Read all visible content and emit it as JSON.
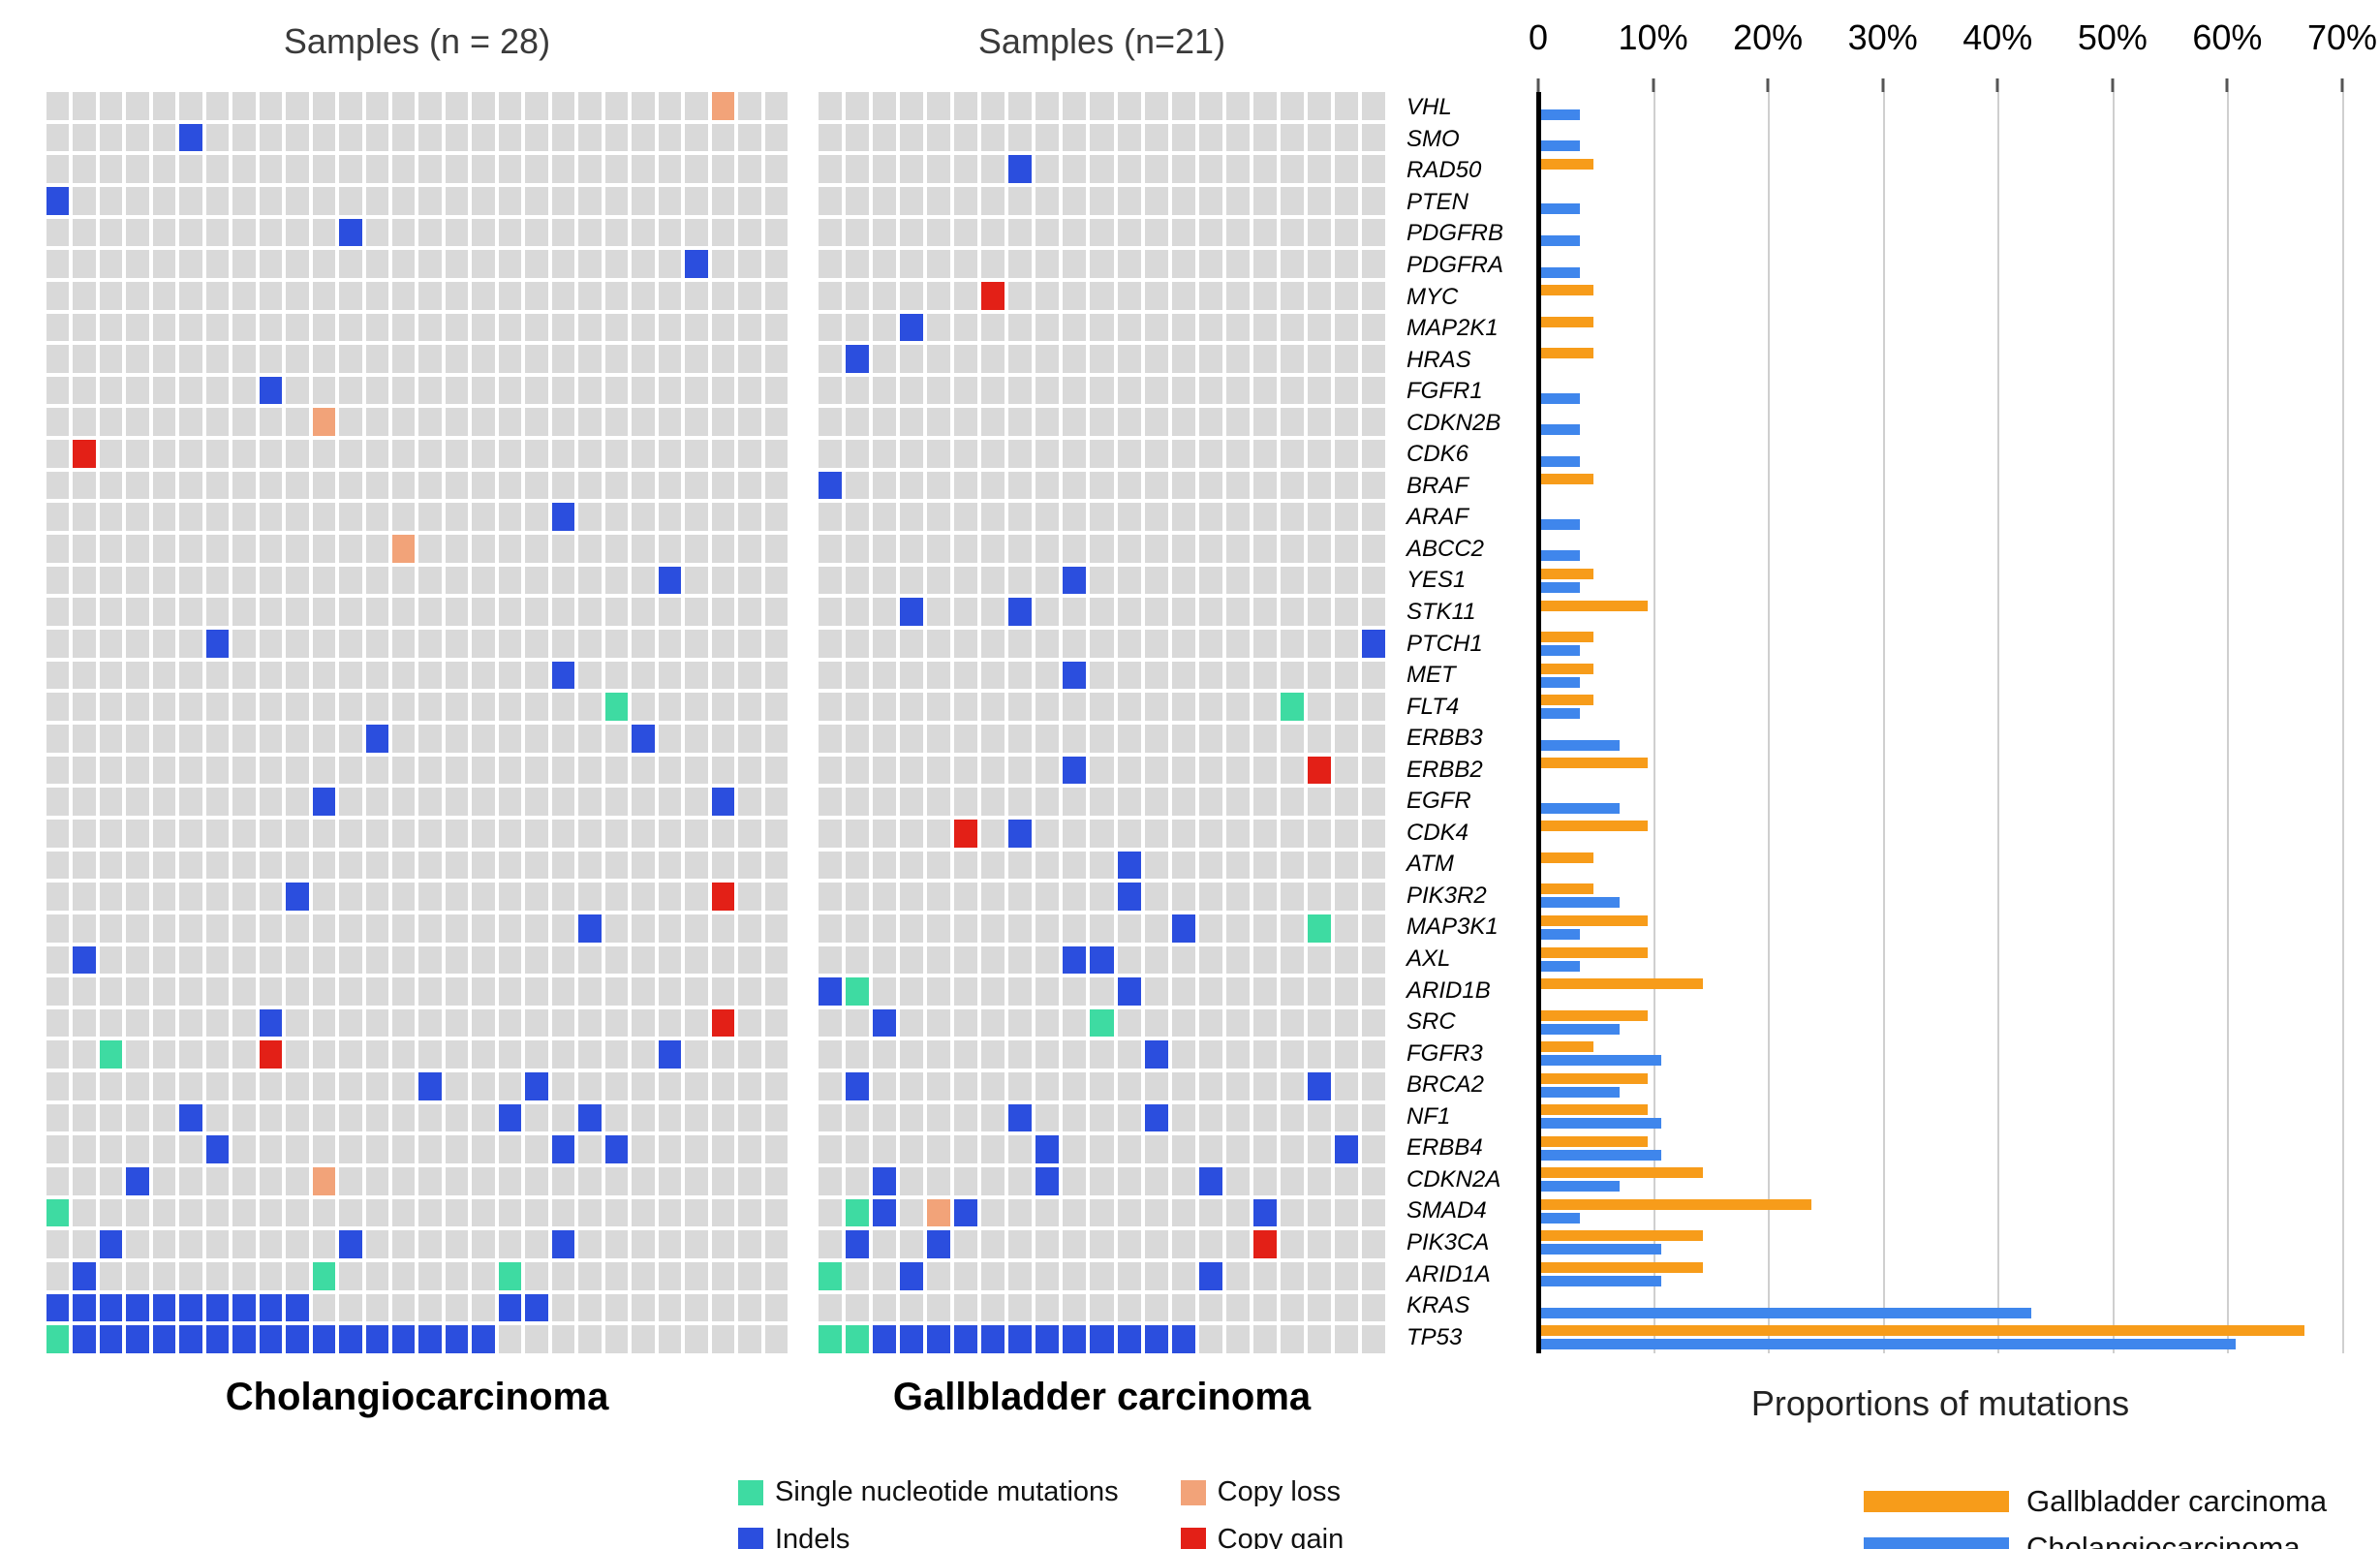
{
  "panels": {
    "cholangiocarcinoma": {
      "title": "Samples (n = 28)",
      "label": "Cholangiocarcinoma",
      "n_samples": 28,
      "n_gene_rows": 40,
      "cells": [
        [
          0,
          26,
          "loss"
        ],
        [
          1,
          6,
          "indel"
        ],
        [
          3,
          1,
          "indel"
        ],
        [
          4,
          12,
          "indel"
        ],
        [
          5,
          25,
          "indel"
        ],
        [
          9,
          9,
          "indel"
        ],
        [
          10,
          11,
          "loss"
        ],
        [
          11,
          2,
          "gain"
        ],
        [
          13,
          20,
          "indel"
        ],
        [
          14,
          14,
          "loss"
        ],
        [
          15,
          24,
          "indel"
        ],
        [
          17,
          7,
          "indel"
        ],
        [
          18,
          20,
          "indel"
        ],
        [
          19,
          22,
          "snv"
        ],
        [
          20,
          13,
          "indel"
        ],
        [
          20,
          23,
          "indel"
        ],
        [
          22,
          11,
          "indel"
        ],
        [
          22,
          26,
          "indel"
        ],
        [
          25,
          10,
          "indel"
        ],
        [
          25,
          26,
          "gain"
        ],
        [
          26,
          21,
          "indel"
        ],
        [
          27,
          2,
          "indel"
        ],
        [
          29,
          9,
          "indel"
        ],
        [
          29,
          26,
          "gain"
        ],
        [
          30,
          3,
          "snv"
        ],
        [
          30,
          9,
          "gain"
        ],
        [
          30,
          24,
          "indel"
        ],
        [
          31,
          15,
          "indel"
        ],
        [
          31,
          19,
          "indel"
        ],
        [
          32,
          6,
          "indel"
        ],
        [
          32,
          18,
          "indel"
        ],
        [
          32,
          21,
          "indel"
        ],
        [
          33,
          7,
          "indel"
        ],
        [
          33,
          20,
          "indel"
        ],
        [
          33,
          22,
          "indel"
        ],
        [
          34,
          4,
          "indel"
        ],
        [
          34,
          11,
          "loss"
        ],
        [
          35,
          1,
          "snv"
        ],
        [
          36,
          3,
          "indel"
        ],
        [
          36,
          12,
          "indel"
        ],
        [
          36,
          20,
          "indel"
        ],
        [
          37,
          2,
          "indel"
        ],
        [
          37,
          11,
          "snv"
        ],
        [
          37,
          18,
          "snv"
        ],
        [
          38,
          1,
          "indel"
        ],
        [
          38,
          2,
          "indel"
        ],
        [
          38,
          3,
          "indel"
        ],
        [
          38,
          4,
          "indel"
        ],
        [
          38,
          5,
          "indel"
        ],
        [
          38,
          6,
          "indel"
        ],
        [
          38,
          7,
          "indel"
        ],
        [
          38,
          8,
          "indel"
        ],
        [
          38,
          9,
          "indel"
        ],
        [
          38,
          10,
          "indel"
        ],
        [
          38,
          18,
          "indel"
        ],
        [
          38,
          19,
          "indel"
        ],
        [
          39,
          1,
          "snv"
        ],
        [
          39,
          2,
          "indel"
        ],
        [
          39,
          3,
          "indel"
        ],
        [
          39,
          4,
          "indel"
        ],
        [
          39,
          5,
          "indel"
        ],
        [
          39,
          6,
          "indel"
        ],
        [
          39,
          7,
          "indel"
        ],
        [
          39,
          8,
          "indel"
        ],
        [
          39,
          9,
          "indel"
        ],
        [
          39,
          10,
          "indel"
        ],
        [
          39,
          11,
          "indel"
        ],
        [
          39,
          12,
          "indel"
        ],
        [
          39,
          13,
          "indel"
        ],
        [
          39,
          14,
          "indel"
        ],
        [
          39,
          15,
          "indel"
        ],
        [
          39,
          16,
          "indel"
        ],
        [
          39,
          17,
          "indel"
        ]
      ]
    },
    "gallbladder": {
      "title": "Samples (n=21)",
      "label": "Gallbladder carcinoma",
      "n_samples": 21,
      "n_gene_rows": 40,
      "cells": [
        [
          2,
          8,
          "indel"
        ],
        [
          6,
          7,
          "gain"
        ],
        [
          7,
          4,
          "indel"
        ],
        [
          8,
          2,
          "indel"
        ],
        [
          12,
          1,
          "indel"
        ],
        [
          15,
          10,
          "indel"
        ],
        [
          16,
          4,
          "indel"
        ],
        [
          16,
          8,
          "indel"
        ],
        [
          17,
          21,
          "indel"
        ],
        [
          18,
          10,
          "indel"
        ],
        [
          19,
          18,
          "snv"
        ],
        [
          21,
          10,
          "indel"
        ],
        [
          21,
          19,
          "gain"
        ],
        [
          23,
          6,
          "gain"
        ],
        [
          23,
          8,
          "indel"
        ],
        [
          24,
          12,
          "indel"
        ],
        [
          25,
          12,
          "indel"
        ],
        [
          26,
          14,
          "indel"
        ],
        [
          26,
          19,
          "snv"
        ],
        [
          27,
          10,
          "indel"
        ],
        [
          27,
          11,
          "indel"
        ],
        [
          28,
          1,
          "indel"
        ],
        [
          28,
          2,
          "snv"
        ],
        [
          28,
          12,
          "indel"
        ],
        [
          29,
          3,
          "indel"
        ],
        [
          29,
          11,
          "snv"
        ],
        [
          30,
          13,
          "indel"
        ],
        [
          31,
          2,
          "indel"
        ],
        [
          31,
          19,
          "indel"
        ],
        [
          32,
          8,
          "indel"
        ],
        [
          32,
          13,
          "indel"
        ],
        [
          33,
          9,
          "indel"
        ],
        [
          33,
          20,
          "indel"
        ],
        [
          34,
          3,
          "indel"
        ],
        [
          34,
          9,
          "indel"
        ],
        [
          34,
          15,
          "indel"
        ],
        [
          35,
          2,
          "snv"
        ],
        [
          35,
          3,
          "indel"
        ],
        [
          35,
          5,
          "loss"
        ],
        [
          35,
          6,
          "indel"
        ],
        [
          35,
          17,
          "indel"
        ],
        [
          36,
          2,
          "indel"
        ],
        [
          36,
          5,
          "indel"
        ],
        [
          36,
          17,
          "gain"
        ],
        [
          37,
          1,
          "snv"
        ],
        [
          37,
          4,
          "indel"
        ],
        [
          37,
          15,
          "indel"
        ],
        [
          39,
          1,
          "snv"
        ],
        [
          39,
          2,
          "snv"
        ],
        [
          39,
          3,
          "indel"
        ],
        [
          39,
          4,
          "indel"
        ],
        [
          39,
          5,
          "indel"
        ],
        [
          39,
          6,
          "indel"
        ],
        [
          39,
          7,
          "indel"
        ],
        [
          39,
          8,
          "indel"
        ],
        [
          39,
          9,
          "indel"
        ],
        [
          39,
          10,
          "indel"
        ],
        [
          39,
          11,
          "indel"
        ],
        [
          39,
          12,
          "indel"
        ],
        [
          39,
          13,
          "indel"
        ],
        [
          39,
          14,
          "indel"
        ]
      ]
    }
  },
  "chart_data": {
    "type": "bar",
    "orientation": "horizontal",
    "title": "",
    "xlabel": "Proportions of mutations",
    "ylabel": "",
    "xlim": [
      0,
      70
    ],
    "unit": "percent",
    "grid": true,
    "legend_position": "bottom-right",
    "x_tick_labels": [
      "0",
      "10%",
      "20%",
      "30%",
      "40%",
      "50%",
      "60%",
      "70%"
    ],
    "categories": [
      "VHL",
      "SMO",
      "RAD50",
      "PTEN",
      "PDGFRB",
      "PDGFRA",
      "MYC",
      "MAP2K1",
      "HRAS",
      "FGFR1",
      "CDKN2B",
      "CDK6",
      "BRAF",
      "ARAF",
      "ABCC2",
      "YES1",
      "STK11",
      "PTCH1",
      "MET",
      "FLT4",
      "ERBB3",
      "ERBB2",
      "EGFR",
      "CDK4",
      "ATM",
      "PIK3R2",
      "MAP3K1",
      "AXL",
      "ARID1B",
      "SRC",
      "FGFR3",
      "BRCA2",
      "NF1",
      "ERBB4",
      "CDKN2A",
      "SMAD4",
      "PIK3CA",
      "ARID1A",
      "KRAS",
      "TP53"
    ],
    "series": [
      {
        "name": "Gallbladder carcinoma",
        "color": "#F79C1A",
        "values": [
          0,
          0,
          4.8,
          0,
          0,
          0,
          4.8,
          4.8,
          4.8,
          0,
          0,
          0,
          4.8,
          0,
          0,
          4.8,
          9.5,
          4.8,
          4.8,
          4.8,
          0,
          9.5,
          0,
          9.5,
          4.8,
          4.8,
          9.5,
          9.5,
          14.3,
          9.5,
          4.8,
          9.5,
          9.5,
          9.5,
          14.3,
          23.8,
          14.3,
          14.3,
          0,
          66.7
        ]
      },
      {
        "name": "Cholangiocarcinoma",
        "color": "#3F86EC",
        "values": [
          3.6,
          3.6,
          0,
          3.6,
          3.6,
          3.6,
          0,
          0,
          0,
          3.6,
          3.6,
          3.6,
          0,
          3.6,
          3.6,
          3.6,
          0,
          3.6,
          3.6,
          3.6,
          7.1,
          0,
          7.1,
          0,
          0,
          7.1,
          3.6,
          3.6,
          0,
          7.1,
          10.7,
          7.1,
          10.7,
          10.7,
          7.1,
          3.6,
          10.7,
          10.7,
          42.9,
          60.7
        ]
      }
    ]
  },
  "mutation_legend": [
    {
      "type": "snv",
      "label": "Single nucleotide mutations",
      "color": "#3EDBA2"
    },
    {
      "type": "loss",
      "label": "Copy loss",
      "color": "#F2A379"
    },
    {
      "type": "indel",
      "label": "Indels",
      "color": "#2B4EDE"
    },
    {
      "type": "gain",
      "label": "Copy gain",
      "color": "#E32017"
    }
  ],
  "colors": {
    "cell_background": "#D9D9D9",
    "snv_green": "#3EDBA2",
    "indel_blue": "#2B4EDE",
    "copy_loss_salmon": "#F2A379",
    "copy_gain_red": "#E32017",
    "gallbladder_orange": "#F79C1A",
    "cholangiocarcinoma_blue": "#3F86EC",
    "gridline_gray": "#CFCFCF",
    "axis_black": "#000000"
  }
}
